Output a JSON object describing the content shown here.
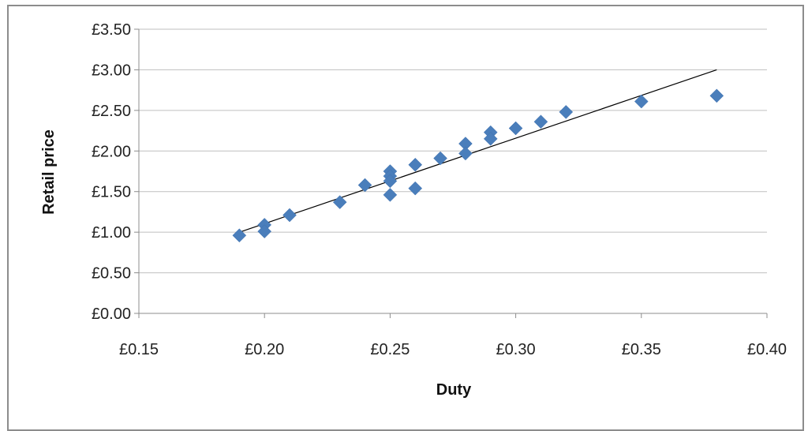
{
  "chart_data": {
    "type": "scatter",
    "title": "",
    "xlabel": "Duty",
    "ylabel": "Retail price",
    "xlim": [
      0.15,
      0.4
    ],
    "ylim": [
      0.0,
      3.5
    ],
    "grid": true,
    "legend": "none",
    "x_ticks": [
      "£0.15",
      "£0.20",
      "£0.25",
      "£0.30",
      "£0.35",
      "£0.40"
    ],
    "y_ticks": [
      "£0.00",
      "£0.50",
      "£1.00",
      "£1.50",
      "£2.00",
      "£2.50",
      "£3.00",
      "£3.50"
    ],
    "series": [
      {
        "marker": "diamond",
        "color": "#4a7ebb",
        "points": [
          {
            "x": 0.19,
            "y": 0.96
          },
          {
            "x": 0.2,
            "y": 1.09
          },
          {
            "x": 0.2,
            "y": 1.01
          },
          {
            "x": 0.21,
            "y": 1.21
          },
          {
            "x": 0.23,
            "y": 1.37
          },
          {
            "x": 0.24,
            "y": 1.58
          },
          {
            "x": 0.25,
            "y": 1.75
          },
          {
            "x": 0.25,
            "y": 1.69
          },
          {
            "x": 0.25,
            "y": 1.63
          },
          {
            "x": 0.25,
            "y": 1.46
          },
          {
            "x": 0.26,
            "y": 1.83
          },
          {
            "x": 0.26,
            "y": 1.54
          },
          {
            "x": 0.27,
            "y": 1.91
          },
          {
            "x": 0.28,
            "y": 2.09
          },
          {
            "x": 0.28,
            "y": 1.97
          },
          {
            "x": 0.29,
            "y": 2.23
          },
          {
            "x": 0.29,
            "y": 2.15
          },
          {
            "x": 0.3,
            "y": 2.28
          },
          {
            "x": 0.31,
            "y": 2.36
          },
          {
            "x": 0.32,
            "y": 2.48
          },
          {
            "x": 0.35,
            "y": 2.61
          },
          {
            "x": 0.38,
            "y": 2.68
          }
        ]
      }
    ],
    "trendline": {
      "type": "linear",
      "color": "#000000",
      "start": {
        "x": 0.19,
        "y": 1.0
      },
      "end": {
        "x": 0.38,
        "y": 3.0
      }
    }
  }
}
